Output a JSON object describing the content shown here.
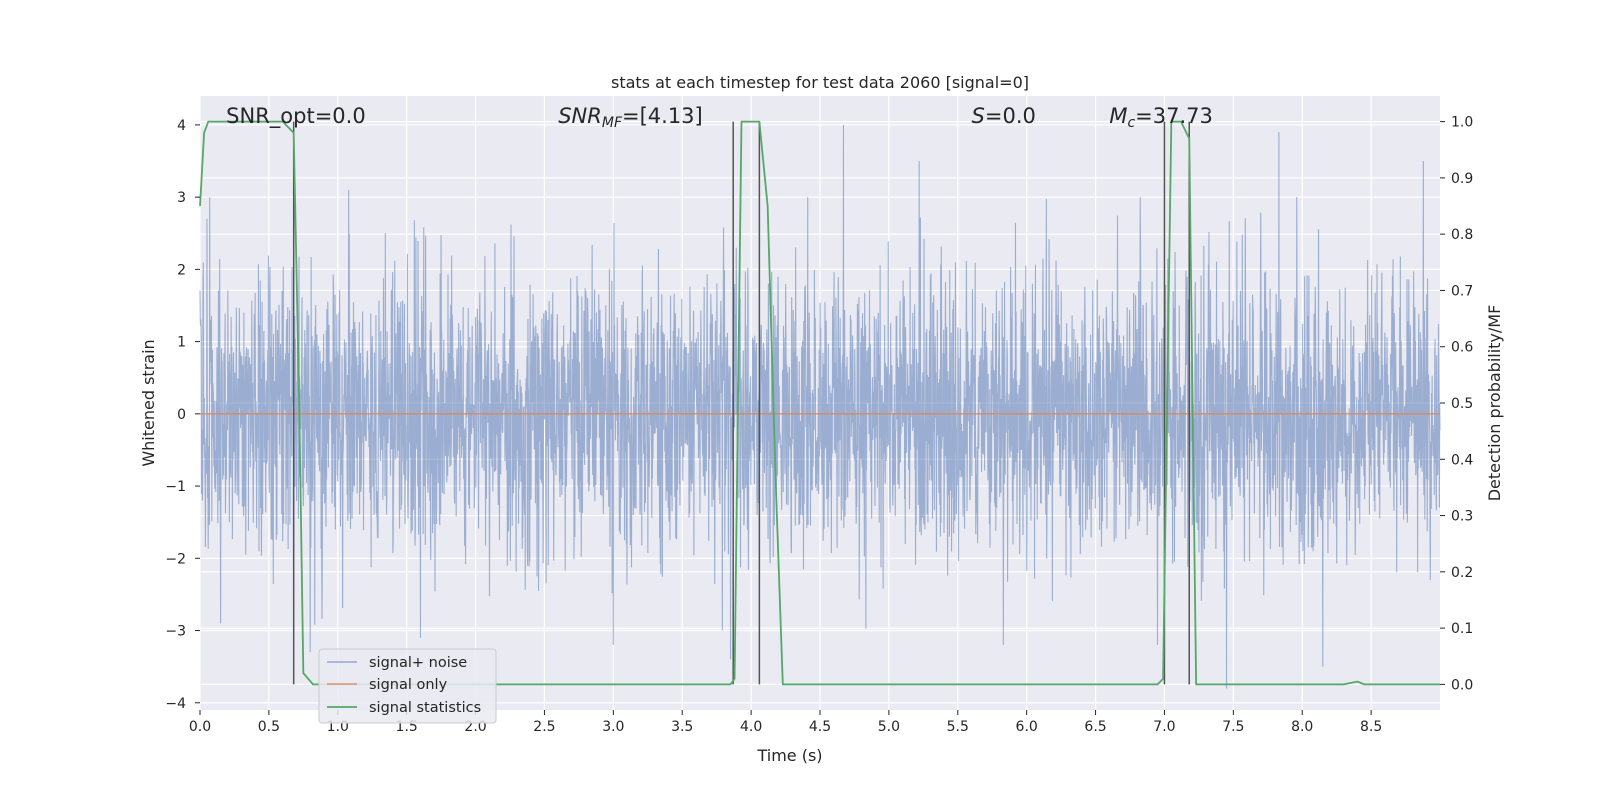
{
  "chart_data": {
    "type": "line",
    "title": "stats at each timestep for test data 2060 [signal=0]",
    "xlabel": "Time (s)",
    "ylabel": "Whitened strain",
    "y2label": "Detection probability/MF",
    "xlim": [
      0,
      9.0
    ],
    "ylim": [
      -4.1,
      4.4
    ],
    "y2lim": [
      -0.0455,
      1.0455
    ],
    "xticks": [
      0.0,
      0.5,
      1.0,
      1.5,
      2.0,
      2.5,
      3.0,
      3.5,
      4.0,
      4.5,
      5.0,
      5.5,
      6.0,
      6.5,
      7.0,
      7.5,
      8.0,
      8.5
    ],
    "xtick_labels": [
      "0.0",
      "0.5",
      "1.0",
      "1.5",
      "2.0",
      "2.5",
      "3.0",
      "3.5",
      "4.0",
      "4.5",
      "5.0",
      "5.5",
      "6.0",
      "6.5",
      "7.0",
      "7.5",
      "8.0",
      "8.5"
    ],
    "yticks": [
      -4,
      -3,
      -2,
      -1,
      0,
      1,
      2,
      3,
      4
    ],
    "ytick_labels": [
      "−4",
      "−3",
      "−2",
      "−1",
      "0",
      "1",
      "2",
      "3",
      "4"
    ],
    "y2ticks": [
      0.0,
      0.1,
      0.2,
      0.3,
      0.4,
      0.5,
      0.6,
      0.7,
      0.8,
      0.9,
      1.0
    ],
    "y2tick_labels": [
      "0.0",
      "0.1",
      "0.2",
      "0.3",
      "0.4",
      "0.5",
      "0.6",
      "0.7",
      "0.8",
      "0.9",
      "1.0"
    ],
    "grid": true,
    "legend_position": "lower-left",
    "colors": {
      "background": "#eaeaf2",
      "grid": "#ffffff",
      "noise": "#4c72b0",
      "signal": "#dd8452",
      "statistics": "#55a868",
      "vlines": "#555555"
    },
    "annotations": [
      {
        "name": "snr-opt",
        "text": "SNR_opt=0.0",
        "x": 0.19,
        "y": 4.12
      },
      {
        "name": "snr-mf",
        "text": "SNR_MF=[4.13]",
        "x": 2.6,
        "y": 4.12
      },
      {
        "name": "s-stat",
        "text": "S=0.0",
        "x": 5.6,
        "y": 4.12
      },
      {
        "name": "chirp-mass",
        "text": "M_c=37.73",
        "x": 6.6,
        "y": 4.12
      }
    ],
    "series": [
      {
        "name": "signal+ noise",
        "axis": "left",
        "style": "dense-noise",
        "sigma": 0.95,
        "samples": 4096,
        "notable_spikes": [
          {
            "x": 0.05,
            "y": 2.7
          },
          {
            "x": 0.07,
            "y": 3.0
          },
          {
            "x": 0.15,
            "y": -2.9
          },
          {
            "x": 0.68,
            "y": -3.1
          },
          {
            "x": 0.8,
            "y": -3.3
          },
          {
            "x": 1.08,
            "y": 3.1
          },
          {
            "x": 1.6,
            "y": -3.1
          },
          {
            "x": 3.0,
            "y": -3.2
          },
          {
            "x": 3.85,
            "y": -3.4
          },
          {
            "x": 4.67,
            "y": 4.0
          },
          {
            "x": 5.22,
            "y": 3.5
          },
          {
            "x": 5.83,
            "y": -3.2
          },
          {
            "x": 6.95,
            "y": -3.2
          },
          {
            "x": 7.45,
            "y": -3.8
          },
          {
            "x": 7.83,
            "y": 3.9
          },
          {
            "x": 8.15,
            "y": -3.5
          },
          {
            "x": 8.88,
            "y": 3.5
          }
        ]
      },
      {
        "name": "signal only",
        "axis": "left",
        "x": [
          0.0,
          9.0
        ],
        "y": [
          0.0,
          0.0
        ]
      },
      {
        "name": "signal statistics",
        "axis": "right",
        "x": [
          0.0,
          0.03,
          0.06,
          0.1,
          0.15,
          0.6,
          0.68,
          0.72,
          0.75,
          0.82,
          0.9,
          3.85,
          3.88,
          3.93,
          4.06,
          4.12,
          4.18,
          4.23,
          6.95,
          6.99,
          7.05,
          7.12,
          7.18,
          7.23,
          8.3,
          8.4,
          8.45,
          9.0
        ],
        "y": [
          0.85,
          0.98,
          1.0,
          1.0,
          1.0,
          1.0,
          0.98,
          0.5,
          0.02,
          0.0,
          0.0,
          0.0,
          0.01,
          1.0,
          1.0,
          0.85,
          0.35,
          0.0,
          0.0,
          0.01,
          1.0,
          1.0,
          0.97,
          0.0,
          0.0,
          0.005,
          0.0,
          0.0
        ]
      }
    ],
    "vertical_lines": [
      0.68,
      3.87,
      4.06,
      7.0,
      7.18
    ]
  }
}
